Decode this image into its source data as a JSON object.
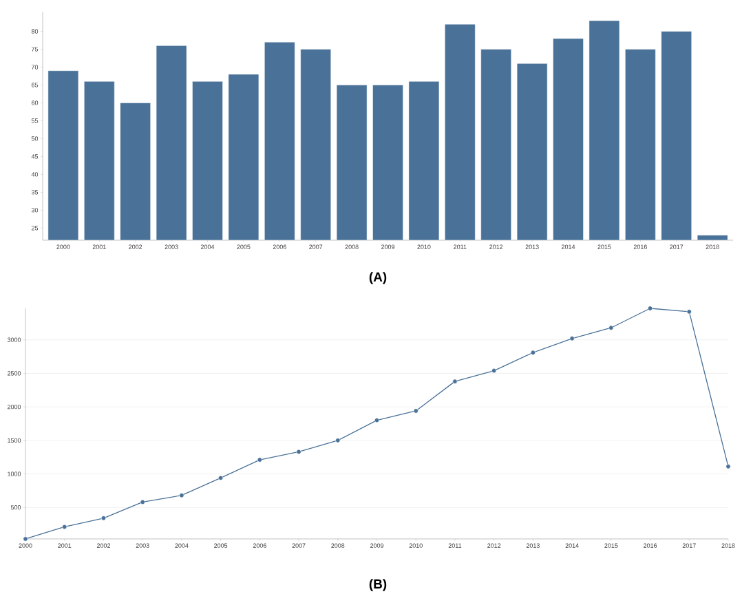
{
  "chart_data": [
    {
      "type": "bar",
      "categories": [
        "2000",
        "2001",
        "2002",
        "2003",
        "2004",
        "2005",
        "2006",
        "2007",
        "2008",
        "2009",
        "2010",
        "2011",
        "2012",
        "2013",
        "2014",
        "2015",
        "2016",
        "2017",
        "2018"
      ],
      "values": [
        69,
        66,
        60,
        76,
        66,
        68,
        77,
        75,
        65,
        65,
        66,
        82,
        75,
        71,
        78,
        83,
        75,
        80,
        23
      ],
      "color": "#4a7298",
      "ylim": [
        21.6,
        85.5
      ],
      "yticks": [
        25,
        30,
        35,
        40,
        45,
        50,
        55,
        60,
        65,
        70,
        75,
        80
      ],
      "annotations": [
        "(A)"
      ]
    },
    {
      "type": "line",
      "x": [
        2000,
        2001,
        2002,
        2003,
        2004,
        2005,
        2006,
        2007,
        2008,
        2009,
        2010,
        2011,
        2012,
        2013,
        2014,
        2015,
        2016,
        2017,
        2018
      ],
      "values": [
        30,
        210,
        340,
        580,
        680,
        940,
        1210,
        1330,
        1500,
        1800,
        1940,
        2380,
        2540,
        2810,
        3020,
        3180,
        3470,
        3420,
        1110
      ],
      "color": "#4a7298",
      "marker": "circle",
      "grid": "y",
      "xlim": [
        2000,
        2018
      ],
      "xticks": [
        2000,
        2001,
        2002,
        2003,
        2004,
        2005,
        2006,
        2007,
        2008,
        2009,
        2010,
        2011,
        2012,
        2013,
        2014,
        2015,
        2016,
        2017,
        2018
      ],
      "ylim": [
        30,
        3470
      ],
      "yticks": [
        500,
        1000,
        1500,
        2000,
        2500,
        3000
      ],
      "annotations": [
        "(B)"
      ]
    }
  ]
}
